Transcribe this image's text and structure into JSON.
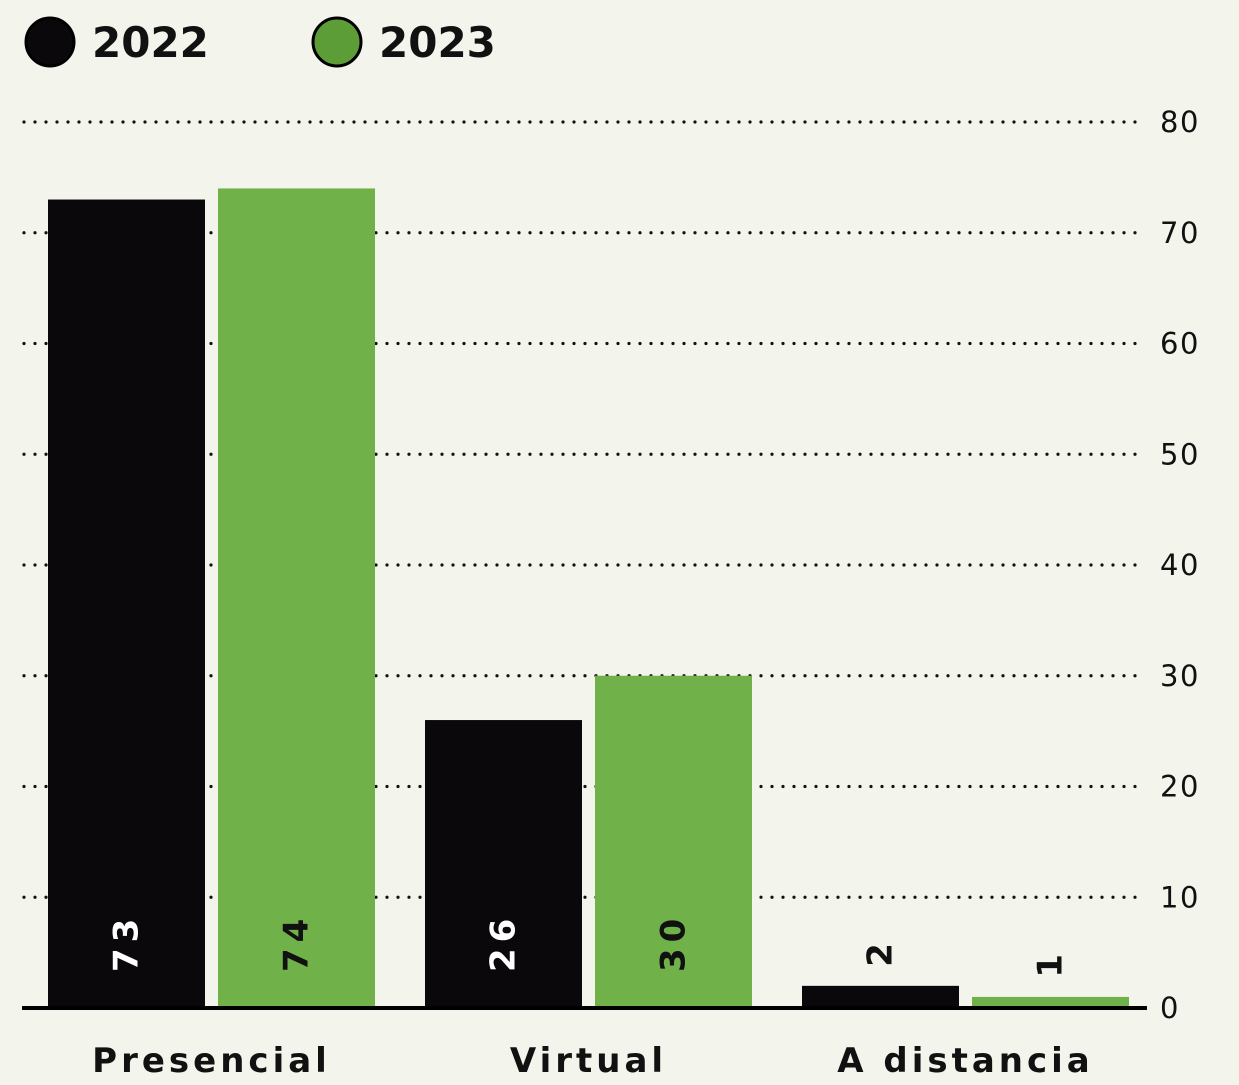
{
  "colors": {
    "background": "#f3f4ec",
    "series_2022": "#0b080b",
    "series_2023": "#71b14a",
    "legend_2023": "#5d9d37",
    "ink": "#111111"
  },
  "chart_data": {
    "type": "bar",
    "categories": [
      "Presencial",
      "Virtual",
      "A distancia"
    ],
    "series": [
      {
        "name": "2022",
        "values": [
          73,
          26,
          2
        ]
      },
      {
        "name": "2023",
        "values": [
          74,
          30,
          1
        ]
      }
    ],
    "title": "",
    "xlabel": "",
    "ylabel": "",
    "ylim": [
      0,
      80
    ],
    "yticks": [
      "0",
      "10",
      "20",
      "30",
      "40",
      "50",
      "60",
      "70",
      "80"
    ],
    "grid": true,
    "grid_style": "dotted",
    "y_axis_side": "right",
    "legend_position": "top-left",
    "data_labels": [
      "73",
      "74",
      "26",
      "30",
      "2",
      "1"
    ],
    "data_label_orientation": "rotated-vertical"
  }
}
